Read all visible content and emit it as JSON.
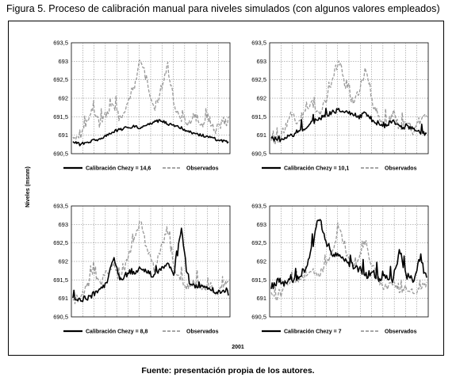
{
  "figure": {
    "title": "Figura 5. Proceso de calibración manual para niveles simulados (con algunos valores empleados)",
    "source": "Fuente: presentación propia de los autores.",
    "shared_ylabel": "Niveles (msnm)",
    "shared_xlabel": "2001"
  },
  "colors": {
    "simulated": "#000000",
    "observed": "#9a9a9a",
    "grid": "#777777"
  },
  "chart_data": [
    {
      "type": "line",
      "ylim": [
        690.5,
        693.5
      ],
      "yticks": [
        "693,5",
        "693",
        "692,5",
        "692",
        "691,5",
        "691",
        "690,5"
      ],
      "grid": true,
      "legend_position": "bottom",
      "series": [
        {
          "name": "Calibración Chezy = 14,6",
          "style": "solid",
          "values": [
            690.85,
            690.75,
            690.8,
            690.85,
            690.9,
            691,
            691.1,
            691.15,
            691.2,
            691.25,
            691.2,
            691.3,
            691.35,
            691.4,
            691.3,
            691.25,
            691.2,
            691.1,
            691.05,
            691,
            690.95,
            690.9,
            690.85,
            690.8
          ]
        },
        {
          "name": "Observados",
          "style": "dashed",
          "values": [
            691,
            690.9,
            691.3,
            691.7,
            691.3,
            691.6,
            691.9,
            691.4,
            691.8,
            692.2,
            693.1,
            692.4,
            691.7,
            692.2,
            692.9,
            691.8,
            691.5,
            691.3,
            691.6,
            691.2,
            691.5,
            691.1,
            691.3,
            691.4
          ]
        }
      ]
    },
    {
      "type": "line",
      "ylim": [
        690.5,
        693.5
      ],
      "yticks": [
        "693,5",
        "693",
        "692,5",
        "692",
        "691,5",
        "691",
        "690,5"
      ],
      "grid": true,
      "legend_position": "bottom",
      "series": [
        {
          "name": "Calibración Chezy = 10,1",
          "style": "solid",
          "values": [
            690.95,
            690.85,
            690.9,
            691,
            691.1,
            691.2,
            691.35,
            691.45,
            691.55,
            691.6,
            691.7,
            691.65,
            691.55,
            691.5,
            691.6,
            691.4,
            691.3,
            691.25,
            691.4,
            691.2,
            691.25,
            691.15,
            691.1,
            691.05
          ]
        },
        {
          "name": "Observados",
          "style": "dashed",
          "values": [
            690.9,
            690.8,
            691.2,
            691.6,
            691.3,
            691.7,
            691.9,
            691.5,
            691.9,
            692.4,
            693.1,
            692.3,
            691.8,
            692.2,
            692.8,
            691.8,
            691.5,
            691.3,
            691.6,
            691.2,
            691.4,
            691.1,
            691.4,
            691.5
          ]
        }
      ]
    },
    {
      "type": "line",
      "ylim": [
        690.5,
        693.5
      ],
      "yticks": [
        "693,5",
        "693",
        "692,5",
        "692",
        "691,5",
        "691",
        "690,5"
      ],
      "grid": true,
      "legend_position": "bottom",
      "series": [
        {
          "name": "Calibración Chezy = 8,8",
          "style": "solid",
          "values": [
            691.05,
            690.95,
            691,
            691.1,
            691.3,
            691.4,
            692.1,
            691.5,
            691.6,
            691.7,
            691.85,
            691.7,
            691.6,
            691.75,
            692,
            691.6,
            692.9,
            691.5,
            691.3,
            691.3,
            691.25,
            691.2,
            691.2,
            691.15
          ]
        },
        {
          "name": "Observados",
          "style": "dashed",
          "values": [
            691,
            690.9,
            691.3,
            691.7,
            691.4,
            691.7,
            691.9,
            691.5,
            692,
            692.5,
            693.1,
            692.3,
            691.8,
            692.3,
            692.9,
            691.8,
            691.5,
            691.3,
            691.5,
            691.2,
            691.4,
            691.1,
            691.3,
            691.4
          ]
        }
      ]
    },
    {
      "type": "line",
      "ylim": [
        690.5,
        693.5
      ],
      "yticks": [
        "693,5",
        "693",
        "692,5",
        "692",
        "691,5",
        "691",
        "690,5"
      ],
      "grid": true,
      "legend_position": "bottom",
      "series": [
        {
          "name": "Calibración Chezy = 7",
          "style": "solid",
          "values": [
            691.3,
            691.5,
            691.4,
            691.5,
            691.6,
            691.8,
            692.3,
            693.2,
            692.6,
            692.2,
            692.1,
            692,
            691.9,
            691.8,
            691.6,
            691.7,
            691.5,
            691.6,
            691.5,
            692.3,
            691.6,
            691.5,
            692.1,
            691.5
          ]
        },
        {
          "name": "Observados",
          "style": "dashed",
          "values": [
            691.2,
            691,
            691.3,
            691.5,
            691.4,
            691.6,
            691.8,
            691.6,
            691.9,
            692.2,
            692.9,
            692.3,
            691.8,
            692.1,
            692.6,
            691.7,
            691.4,
            691.3,
            691.4,
            691.2,
            691.3,
            691.1,
            691.3,
            691.4
          ]
        }
      ]
    }
  ]
}
